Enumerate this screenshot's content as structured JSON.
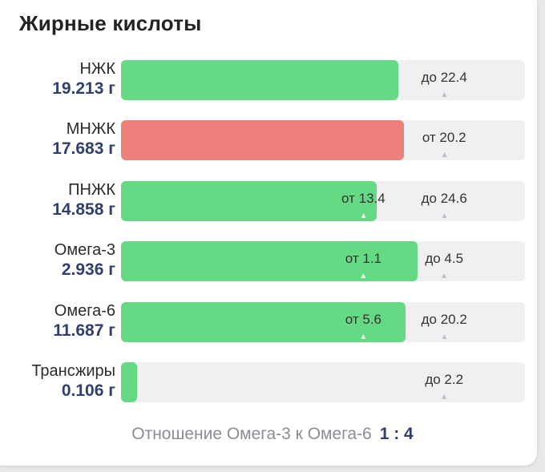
{
  "title": "Жирные кислоты",
  "colors": {
    "within_norm": "#66d985",
    "out_of_norm": "#ef7f7a",
    "track": "#f0f0f3",
    "amount_text": "#2f3f6e"
  },
  "rows": [
    {
      "name": "НЖК",
      "amount": "19.213 г",
      "status": "ok",
      "fill_fraction": 0.686,
      "markers": [
        {
          "text": "до 22.4",
          "position_fraction": 0.8,
          "on_fill": false
        }
      ]
    },
    {
      "name": "МНЖК",
      "amount": "17.683 г",
      "status": "bad",
      "fill_fraction": 0.7,
      "markers": [
        {
          "text": "от 20.2",
          "position_fraction": 0.8,
          "on_fill": false
        }
      ]
    },
    {
      "name": "ПНЖК",
      "amount": "14.858 г",
      "status": "ok",
      "fill_fraction": 0.633,
      "markers": [
        {
          "text": "от 13.4",
          "position_fraction": 0.6,
          "on_fill": true
        },
        {
          "text": "до 24.6",
          "position_fraction": 0.8,
          "on_fill": false
        }
      ]
    },
    {
      "name": "Омега-3",
      "amount": "2.936 г",
      "status": "ok",
      "fill_fraction": 0.734,
      "markers": [
        {
          "text": "от 1.1",
          "position_fraction": 0.6,
          "on_fill": true
        },
        {
          "text": "до 4.5",
          "position_fraction": 0.8,
          "on_fill": false
        }
      ]
    },
    {
      "name": "Омега-6",
      "amount": "11.687 г",
      "status": "ok",
      "fill_fraction": 0.704,
      "markers": [
        {
          "text": "от 5.6",
          "position_fraction": 0.6,
          "on_fill": true
        },
        {
          "text": "до 20.2",
          "position_fraction": 0.8,
          "on_fill": false
        }
      ]
    },
    {
      "name": "Трансжиры",
      "amount": "0.106 г",
      "status": "ok",
      "fill_fraction": 0.04,
      "markers": [
        {
          "text": "до 2.2",
          "position_fraction": 0.8,
          "on_fill": false
        }
      ]
    }
  ],
  "ratio": {
    "label": "Отношение Омега-3 к Омега-6",
    "value": "1 : 4"
  }
}
